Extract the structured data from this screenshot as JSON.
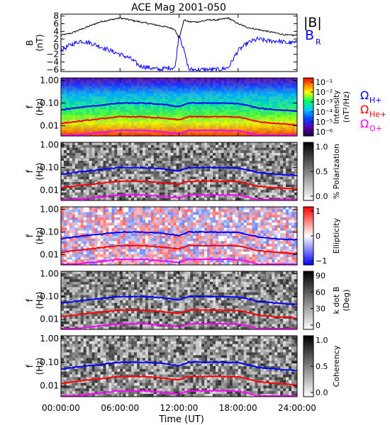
{
  "title": "ACE Mag 2001-050",
  "time_axis": {
    "label": "Time (UT)",
    "ticks": [
      "00:00:00",
      "06:00:00",
      "12:00:00",
      "18:00:00",
      "24:00:00"
    ],
    "range_hours": [
      0,
      24
    ]
  },
  "colors": {
    "B_total": "#000000",
    "B_R": "#0000ff",
    "omega_H": "#0000ff",
    "omega_He": "#ff0000",
    "omega_O": "#ff00ff"
  },
  "legend": {
    "B_total": "|B|",
    "B_R": "B",
    "B_R_sub": "R",
    "omega_H": "Ω",
    "omega_H_sub": "H+",
    "omega_He": "Ω",
    "omega_He_sub": "He+",
    "omega_O": "Ω",
    "omega_O_sub": "O+"
  },
  "panels": {
    "mag": {
      "ylabel_1": "B",
      "ylabel_2": "(nT)",
      "ticks": [
        "8",
        "6",
        "4",
        "2",
        "0",
        "−2",
        "−4",
        "−6"
      ]
    },
    "spectral": [
      {
        "id": "intensity",
        "ylabel_1": "f",
        "ylabel_2": "(Hz)",
        "cbar_type": "rainbow",
        "cbar_label_1": "Intensity",
        "cbar_label_2": "(nT²/Hz)",
        "cbar_ticks": [
          "10⁻¹",
          "10⁻²",
          "10⁻³",
          "10⁻⁴",
          "10⁻⁵",
          "10⁻⁶"
        ]
      },
      {
        "id": "polarization",
        "ylabel_1": "f",
        "ylabel_2": "(Hz)",
        "cbar_type": "gray",
        "cbar_label_1": "% Polarization",
        "cbar_label_2": "",
        "cbar_ticks": [
          "1.0",
          "0.5",
          "0.0"
        ]
      },
      {
        "id": "ellipticity",
        "ylabel_1": "f",
        "ylabel_2": "(Hz)",
        "cbar_type": "bwr",
        "cbar_label_1": "Ellipticity",
        "cbar_label_2": "",
        "cbar_ticks": [
          "1",
          "0",
          "−1"
        ]
      },
      {
        "id": "kdotb",
        "ylabel_1": "f",
        "ylabel_2": "(Hz)",
        "cbar_type": "gray",
        "cbar_label_1": "k dot B",
        "cbar_label_2": "(Deg)",
        "cbar_ticks": [
          "90",
          "60",
          "30",
          "0"
        ]
      },
      {
        "id": "coherency",
        "ylabel_1": "f",
        "ylabel_2": "(Hz)",
        "cbar_type": "gray",
        "cbar_label_1": "Coherency",
        "cbar_label_2": "",
        "cbar_ticks": [
          "1.0",
          "0.5",
          "0.0"
        ]
      }
    ],
    "freq_ticks": [
      "1.00",
      "0.10",
      "0.01"
    ]
  },
  "chart_data": {
    "type": "line",
    "title": "ACE Mag 2001-050",
    "xlabel": "Time (UT)",
    "xlim": [
      0,
      24
    ],
    "mag": {
      "ylabel": "B (nT)",
      "ylim": [
        -6.5,
        8.5
      ],
      "x": [
        0,
        1,
        2,
        3,
        4,
        5,
        6,
        7,
        8,
        9,
        10,
        11,
        11.6,
        12,
        12.5,
        13,
        14,
        15,
        16,
        17,
        18,
        19,
        20,
        21,
        22,
        23,
        24
      ],
      "series": [
        {
          "name": "|B|",
          "values": [
            3,
            3.5,
            4.5,
            5.5,
            6.5,
            7,
            7.5,
            7,
            6.5,
            6,
            5.5,
            5,
            4.5,
            2,
            7,
            6.5,
            6.5,
            7,
            7,
            7.5,
            6,
            5,
            4.5,
            4,
            3.5,
            3,
            3
          ]
        },
        {
          "name": "B_R",
          "values": [
            -1,
            0.5,
            1.5,
            1,
            0,
            -1,
            -2,
            -3,
            -5,
            -5.5,
            -6,
            -5.5,
            -5.5,
            3.5,
            -1,
            -6,
            -6,
            -6,
            -6,
            -5.5,
            -1,
            1,
            2,
            1.5,
            1.5,
            1,
            1
          ]
        }
      ]
    },
    "spectral": {
      "ylabel": "f (Hz)",
      "yscale": "log",
      "ylim": [
        0.0035,
        1.3
      ],
      "x": [
        0,
        2,
        4,
        6,
        8,
        10,
        12,
        13,
        14,
        16,
        18,
        20,
        22,
        24
      ],
      "series": [
        {
          "name": "ΩH+",
          "values": [
            0.05,
            0.065,
            0.08,
            0.1,
            0.1,
            0.09,
            0.07,
            0.1,
            0.1,
            0.1,
            0.095,
            0.06,
            0.05,
            0.045
          ]
        },
        {
          "name": "ΩHe+",
          "values": [
            0.0125,
            0.016,
            0.02,
            0.025,
            0.025,
            0.022,
            0.018,
            0.025,
            0.025,
            0.025,
            0.024,
            0.015,
            0.0125,
            0.011
          ]
        },
        {
          "name": "ΩO+",
          "values": [
            0.0031,
            0.004,
            0.005,
            0.0062,
            0.0062,
            0.0055,
            0.0045,
            0.0062,
            0.0062,
            0.0062,
            0.006,
            0.0038,
            0.0031,
            0.0028
          ]
        }
      ]
    }
  }
}
